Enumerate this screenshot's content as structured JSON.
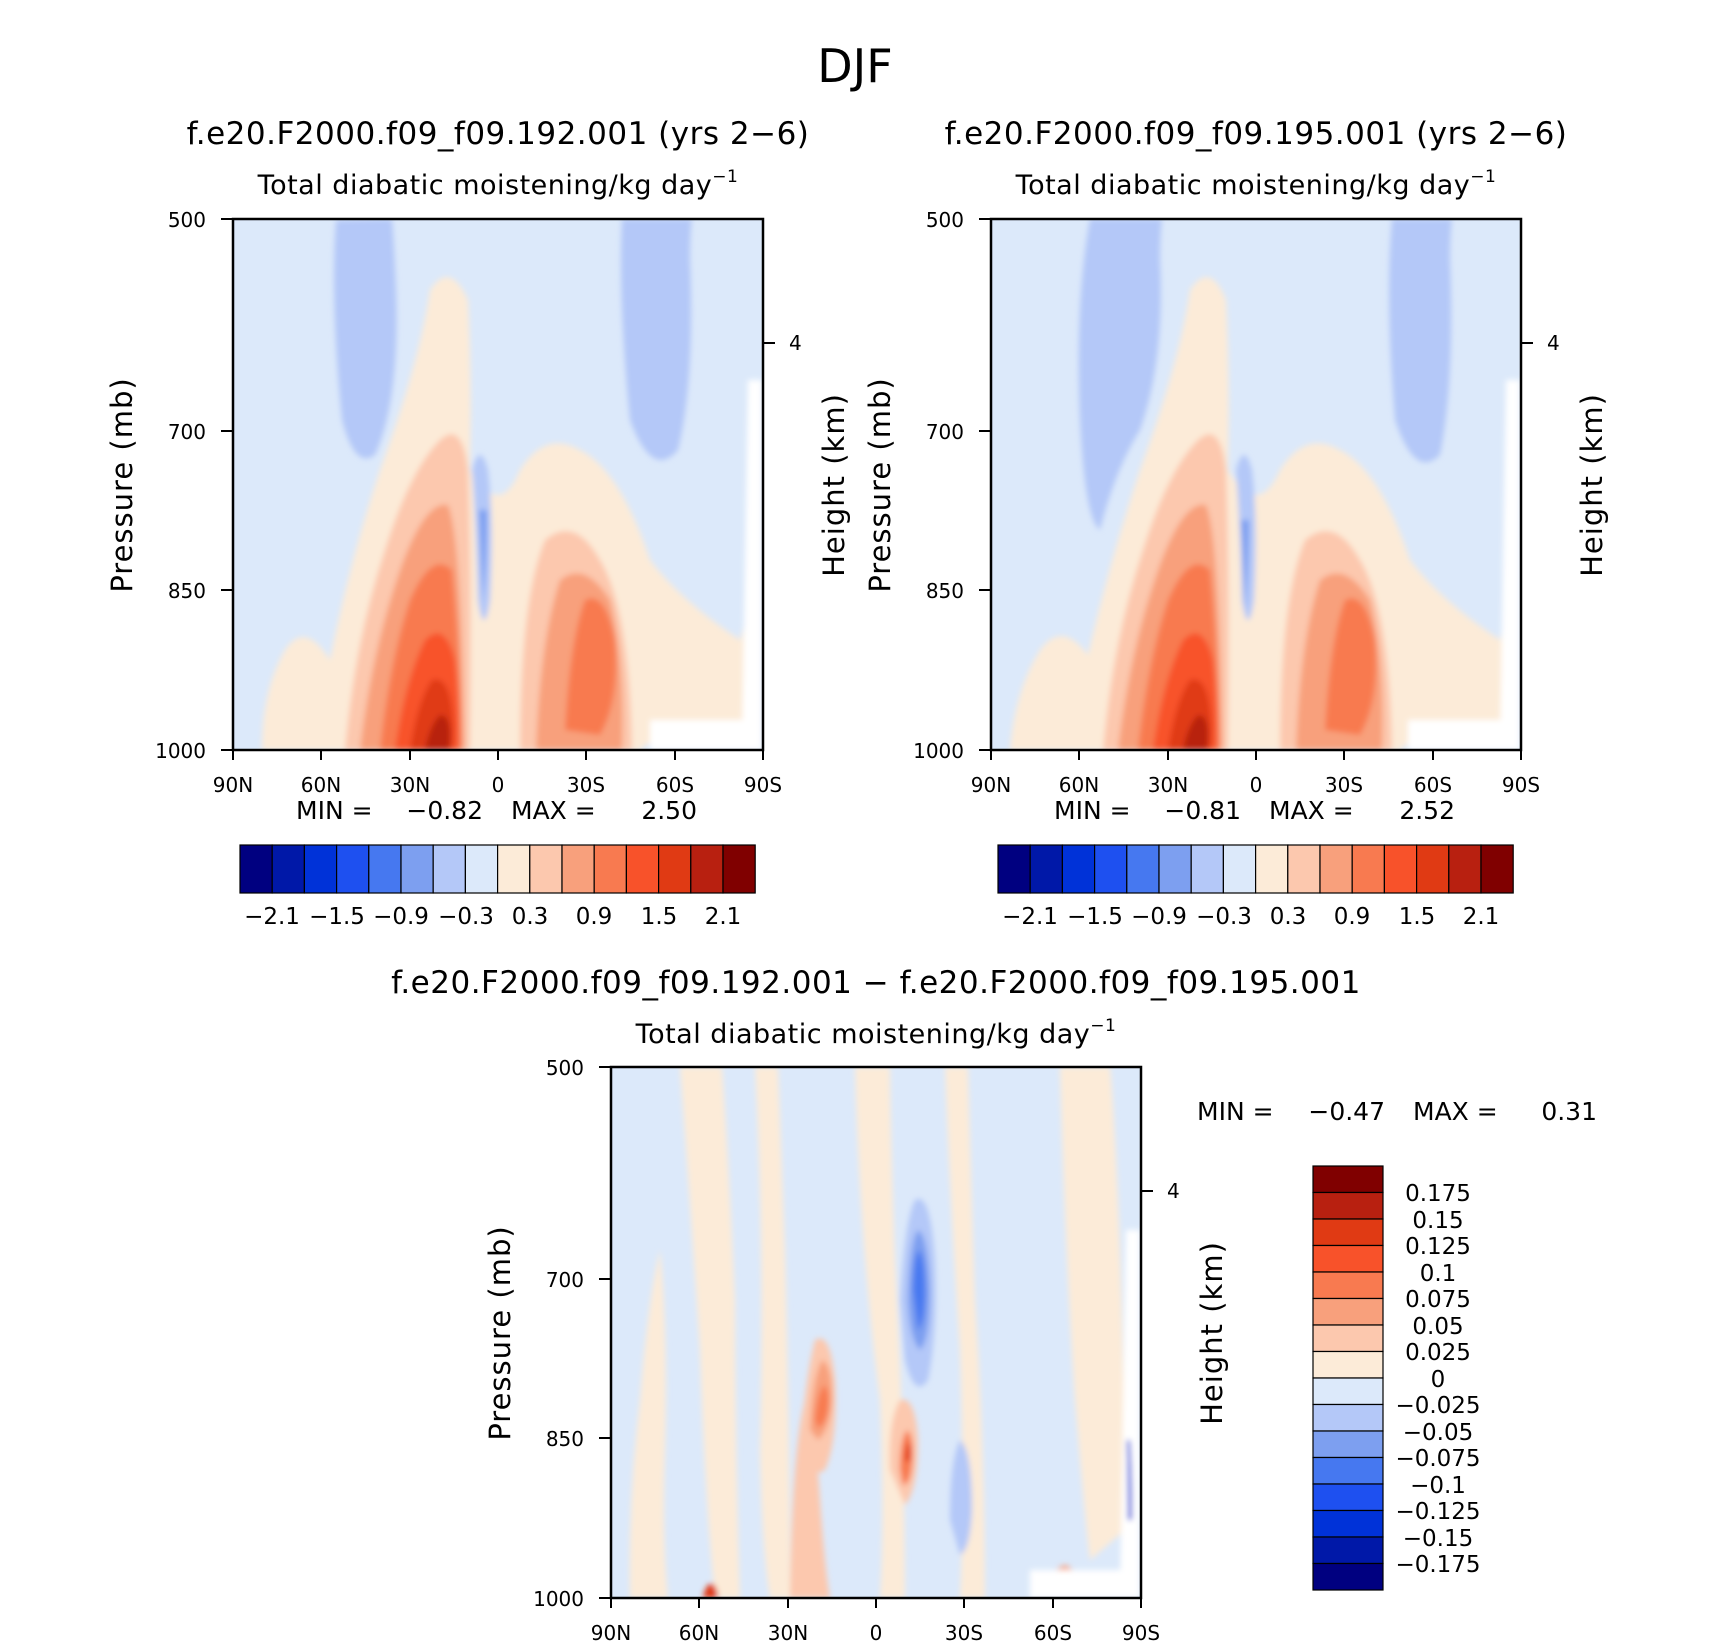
{
  "figure": {
    "title": "DJF",
    "variable_label": "Total diabatic moistening/kg day",
    "variable_exp": "-1",
    "y_label": "Pressure (mb)",
    "y2_label": "Height (km)"
  },
  "colors": {
    "main_palette": [
      "#000080",
      "#0018a8",
      "#0032d8",
      "#1e50f0",
      "#4678f0",
      "#7d9ff0",
      "#b4c8f8",
      "#dce9fa",
      "#fcebd8",
      "#fcc8ae",
      "#f8a07c",
      "#f87a50",
      "#f8522a",
      "#e03a14",
      "#b82010",
      "#800000"
    ],
    "diff_palette": [
      "#000080",
      "#0018a8",
      "#0032d8",
      "#1e50f0",
      "#4678f0",
      "#7d9ff0",
      "#b4c8f8",
      "#dce9fa",
      "#fcebd8",
      "#fcc8ae",
      "#f8a07c",
      "#f87a50",
      "#f8522a",
      "#e03a14",
      "#b82010",
      "#800000"
    ]
  },
  "chart_data": [
    {
      "type": "contour",
      "title": "f.e20.F2000.f09_f09.192.001 (yrs 2-6)",
      "subtitle": "Total diabatic moistening/kg day-1",
      "x_ticks": [
        "90N",
        "60N",
        "30N",
        "0",
        "30S",
        "60S",
        "90S"
      ],
      "y_ticks": [
        "500",
        "700",
        "850",
        "1000"
      ],
      "y_scale": "log-pressure",
      "ylim": [
        1000,
        500
      ],
      "y2_ticks": [
        "4"
      ],
      "min_label": "MIN =",
      "min_value": "-0.82",
      "max_label": "MAX =",
      "max_value": "2.50",
      "colorbar_labels": [
        "-2.1",
        "-1.5",
        "-0.9",
        "-0.3",
        "0.3",
        "0.9",
        "1.5",
        "2.1"
      ],
      "features": [
        {
          "lat": 20,
          "p": 960,
          "value": 2.4
        },
        {
          "lat": 20,
          "p": 870,
          "value": 1.5
        },
        {
          "lat": 25,
          "p": 700,
          "value": 0.3
        },
        {
          "lat": 0,
          "p": 820,
          "value": -0.5
        },
        {
          "lat": -32,
          "p": 880,
          "value": 1.1
        },
        {
          "lat": -5,
          "p": 920,
          "value": 0.6
        },
        {
          "lat": 40,
          "p": 580,
          "value": -0.4
        },
        {
          "lat": -58,
          "p": 590,
          "value": -0.4
        }
      ]
    },
    {
      "type": "contour",
      "title": "f.e20.F2000.f09_f09.195.001 (yrs 2-6)",
      "subtitle": "Total diabatic moistening/kg day-1",
      "x_ticks": [
        "90N",
        "60N",
        "30N",
        "0",
        "30S",
        "60S",
        "90S"
      ],
      "y_ticks": [
        "500",
        "700",
        "850",
        "1000"
      ],
      "y_scale": "log-pressure",
      "ylim": [
        1000,
        500
      ],
      "y2_ticks": [
        "4"
      ],
      "min_label": "MIN =",
      "min_value": "-0.81",
      "max_label": "MAX =",
      "max_value": "2.52",
      "colorbar_labels": [
        "-2.1",
        "-1.5",
        "-0.9",
        "-0.3",
        "0.3",
        "0.9",
        "1.5",
        "2.1"
      ],
      "features": [
        {
          "lat": 20,
          "p": 960,
          "value": 2.4
        },
        {
          "lat": 20,
          "p": 870,
          "value": 1.5
        },
        {
          "lat": 25,
          "p": 700,
          "value": 0.3
        },
        {
          "lat": 3,
          "p": 830,
          "value": -0.5
        },
        {
          "lat": -32,
          "p": 880,
          "value": 1.1
        },
        {
          "lat": 42,
          "p": 600,
          "value": -0.4
        },
        {
          "lat": -58,
          "p": 590,
          "value": -0.4
        }
      ]
    },
    {
      "type": "contour",
      "title": "f.e20.F2000.f09_f09.192.001 - f.e20.F2000.f09_f09.195.001",
      "subtitle": "Total diabatic moistening/kg day-1",
      "x_ticks": [
        "90N",
        "60N",
        "30N",
        "0",
        "30S",
        "60S",
        "90S"
      ],
      "y_ticks": [
        "500",
        "700",
        "850",
        "1000"
      ],
      "y_scale": "log-pressure",
      "ylim": [
        1000,
        500
      ],
      "y2_ticks": [
        "4"
      ],
      "min_label": "MIN =",
      "min_value": "-0.47",
      "max_label": "MAX =",
      "max_value": "0.31",
      "colorbar_labels": [
        "0.175",
        "0.15",
        "0.125",
        "0.1",
        "0.075",
        "0.05",
        "0.025",
        "0",
        "-0.025",
        "-0.05",
        "-0.075",
        "-0.1",
        "-0.125",
        "-0.15",
        "-0.175"
      ],
      "features": [
        {
          "lat": 22,
          "p": 860,
          "value": 0.12
        },
        {
          "lat": -13,
          "p": 880,
          "value": 0.12
        },
        {
          "lat": -15,
          "p": 720,
          "value": -0.12
        },
        {
          "lat": -65,
          "p": 990,
          "value": 0.2
        },
        {
          "lat": 57,
          "p": 995,
          "value": 0.2
        }
      ]
    }
  ]
}
